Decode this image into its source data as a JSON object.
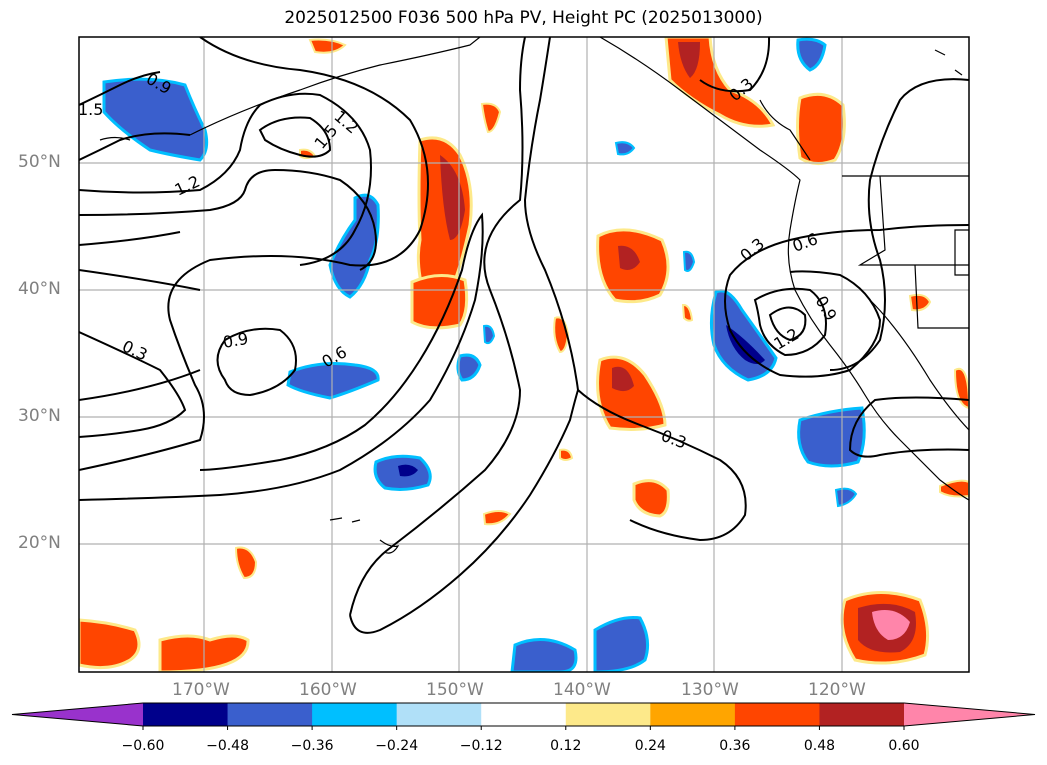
{
  "title": "2025012500 F036 500 hPa PV, Height PC (2025013000)",
  "lat_labels": [
    "50°N",
    "40°N",
    "30°N",
    "20°N"
  ],
  "lon_labels": [
    "170°W",
    "160°W",
    "150°W",
    "140°W",
    "130°W",
    "120°W"
  ],
  "contour_labels": [
    "0.9",
    "1.5",
    "1.2",
    "1.5",
    "1.2",
    "0.3",
    "0.9",
    "0.6",
    "0.3",
    "0.3",
    "0.6",
    "0.9",
    "1.2",
    "0.3"
  ],
  "colorbar": {
    "ticks": [
      "−0.60",
      "−0.48",
      "−0.36",
      "−0.24",
      "−0.12",
      "0.12",
      "0.24",
      "0.36",
      "0.48",
      "0.60"
    ],
    "colors": [
      "#9932cc",
      "#00008b",
      "#3a5fcd",
      "#00bfff",
      "#b0e0f8",
      "#ffffff",
      "#fde98a",
      "#ffa500",
      "#ff4500",
      "#b22222",
      "#ff85aa"
    ]
  },
  "map": {
    "coastline_color": "#000000",
    "contour_color": "#000000",
    "grid_color": "#b0b0b0"
  }
}
